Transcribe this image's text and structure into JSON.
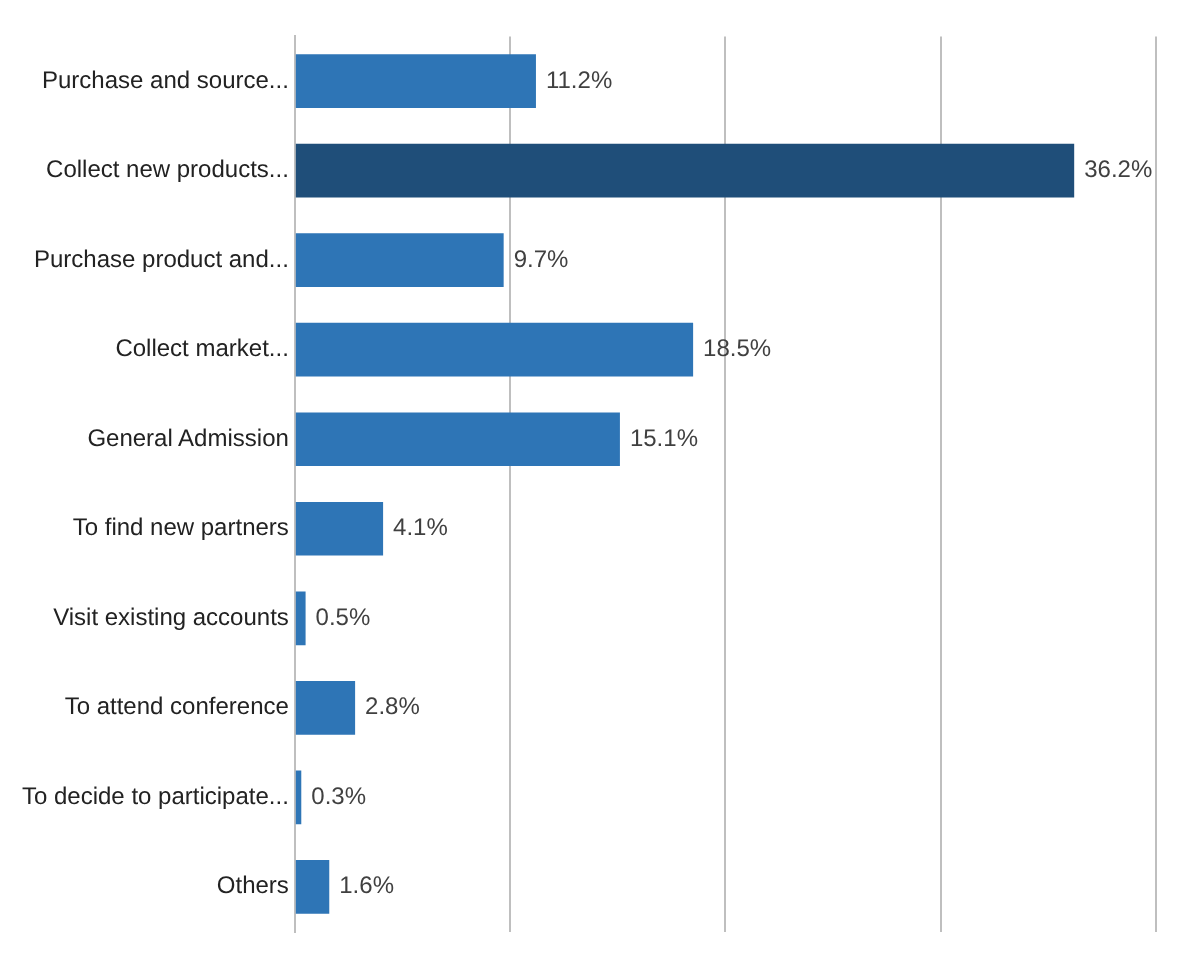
{
  "chart_data": {
    "type": "bar",
    "orientation": "horizontal",
    "categories": [
      "Purchase and source...",
      "Collect new products...",
      "Purchase product and...",
      "Collect market...",
      "General Admission",
      "To find new partners",
      "Visit existing accounts",
      "To attend conference",
      "To decide to participate...",
      "Others"
    ],
    "values": [
      11.2,
      36.2,
      9.7,
      18.5,
      15.1,
      4.1,
      0.5,
      2.8,
      0.3,
      1.6
    ],
    "colors": [
      "#2e75b6",
      "#1f4e79",
      "#2e75b6",
      "#2e75b6",
      "#2e75b6",
      "#2e75b6",
      "#2e75b6",
      "#2e75b6",
      "#2e75b6",
      "#2e75b6"
    ],
    "value_labels": [
      "11.2%",
      "36.2%",
      "9.7%",
      "18.5%",
      "15.1%",
      "4.1%",
      "0.5%",
      "2.8%",
      "0.3%",
      "1.6%"
    ],
    "xlim": [
      0,
      40
    ],
    "xticks": [
      {
        "value": 0,
        "label": null
      },
      {
        "value": 10,
        "label": null
      },
      {
        "value": 20,
        "label": null
      },
      {
        "value": 30,
        "label": null
      },
      {
        "value": 40,
        "label": null
      }
    ],
    "grid": "x",
    "tick_labels": "y"
  }
}
